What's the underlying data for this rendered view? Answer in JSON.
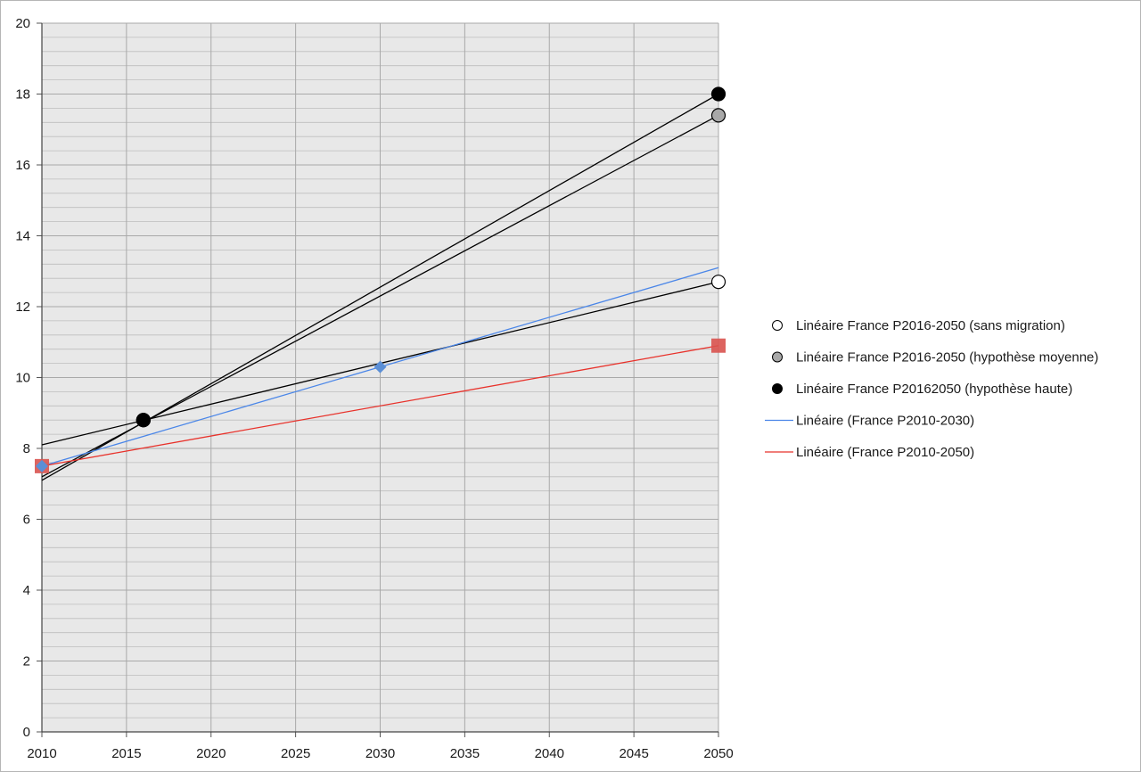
{
  "chart_data": {
    "type": "scatter",
    "title": "",
    "xlabel": "",
    "ylabel": "",
    "xlim": [
      2010,
      2050
    ],
    "ylim": [
      0,
      20
    ],
    "x_ticks": [
      2010,
      2015,
      2020,
      2025,
      2030,
      2035,
      2040,
      2045,
      2050
    ],
    "y_ticks": [
      0,
      2,
      4,
      6,
      8,
      10,
      12,
      14,
      16,
      18,
      20
    ],
    "grid": {
      "major": true,
      "minor_y_step": 0.4
    },
    "plot_background": "#e8e8e8",
    "grid_color": "#a9a9a9",
    "legend_position": "right",
    "series": [
      {
        "name": "France P2016-2050 (sans migration)",
        "marker": "circle",
        "marker_fill": "#ffffff",
        "points": [
          [
            2016,
            8.8
          ],
          [
            2050,
            12.7
          ]
        ]
      },
      {
        "name": "France P2016-2050 (hypothèse moyenne)",
        "marker": "circle",
        "marker_fill": "#a8a8a8",
        "points": [
          [
            2016,
            8.8
          ],
          [
            2050,
            17.4
          ]
        ]
      },
      {
        "name": "France P20162050 (hypothèse haute)",
        "marker": "circle",
        "marker_fill": "#000000",
        "points": [
          [
            2016,
            8.8
          ],
          [
            2050,
            18.0
          ]
        ]
      },
      {
        "name": "France P2010-2030",
        "marker": "diamond",
        "marker_fill": "#5b8fd6",
        "points": [
          [
            2010,
            7.5
          ],
          [
            2030,
            10.3
          ]
        ]
      },
      {
        "name": "France P2010-2050",
        "marker": "square",
        "marker_fill": "#d9534f",
        "points": [
          [
            2010,
            7.5
          ],
          [
            2050,
            10.9
          ]
        ]
      }
    ],
    "trendlines": [
      {
        "series": "France P2016-2050 (sans migration)",
        "from": [
          2010,
          8.1
        ],
        "to": [
          2050,
          12.7
        ],
        "color": "#000000"
      },
      {
        "series": "France P2016-2050 (hypothèse moyenne)",
        "from": [
          2010,
          7.2
        ],
        "to": [
          2050,
          17.4
        ],
        "color": "#000000"
      },
      {
        "series": "France P20162050 (hypothèse haute)",
        "from": [
          2010,
          7.1
        ],
        "to": [
          2050,
          18.0
        ],
        "color": "#000000"
      },
      {
        "series": "France P2010-2030",
        "from": [
          2010,
          7.5
        ],
        "to": [
          2050,
          13.1
        ],
        "color": "#4a86e8"
      },
      {
        "series": "France P2010-2050",
        "from": [
          2010,
          7.5
        ],
        "to": [
          2050,
          10.9
        ],
        "color": "#e8322b"
      }
    ],
    "legend": [
      {
        "label": "Linéaire France P2016-2050 (sans migration)",
        "symbol": "circle",
        "fill": "#ffffff"
      },
      {
        "label": "Linéaire France P2016-2050 (hypothèse moyenne)",
        "symbol": "circle",
        "fill": "#a8a8a8"
      },
      {
        "label": "Linéaire France P20162050 (hypothèse haute)",
        "symbol": "circle",
        "fill": "#000000"
      },
      {
        "label": "Linéaire (France P2010-2030)",
        "symbol": "line",
        "fill": "#4a86e8"
      },
      {
        "label": "Linéaire (France P2010-2050)",
        "symbol": "line",
        "fill": "#e8322b"
      }
    ]
  }
}
